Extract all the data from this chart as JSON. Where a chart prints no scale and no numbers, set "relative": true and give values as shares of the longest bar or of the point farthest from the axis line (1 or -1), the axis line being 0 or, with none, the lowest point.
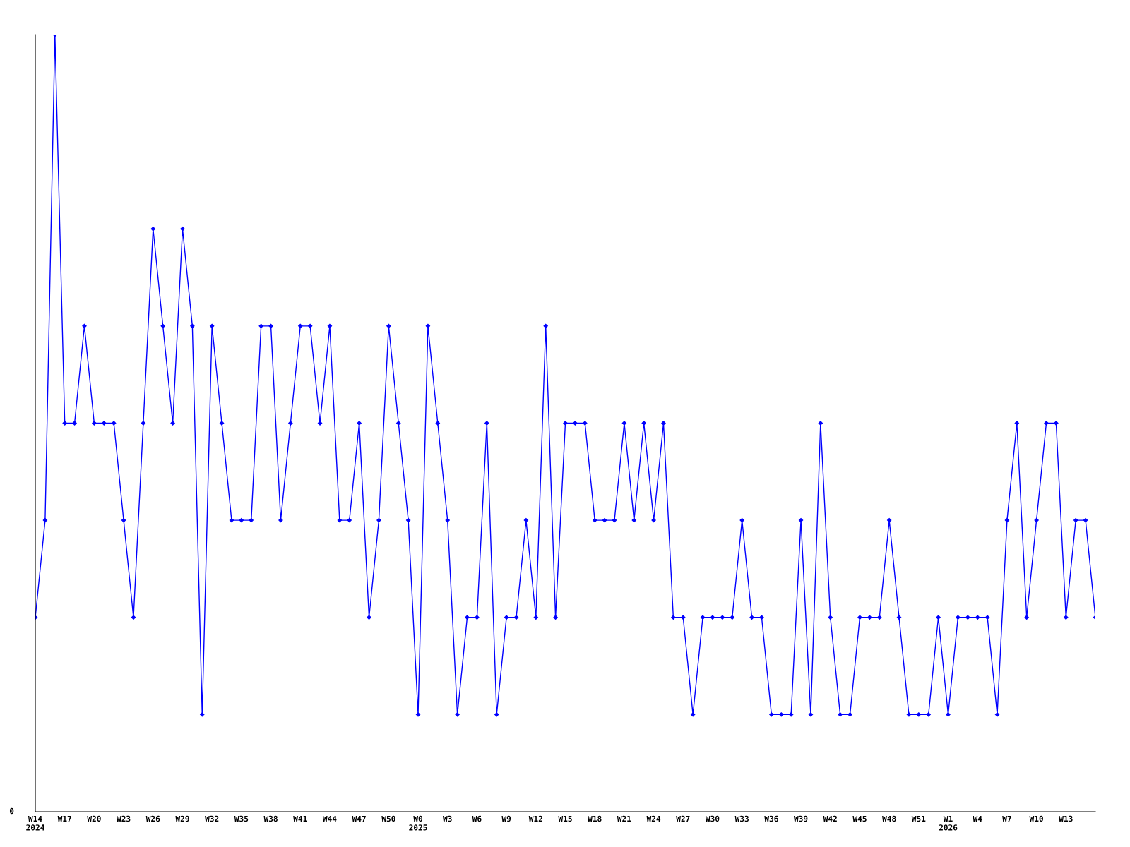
{
  "chart_data": {
    "type": "line",
    "relative": true,
    "categories": [
      "W14\n2024",
      null,
      null,
      "W17",
      null,
      null,
      "W20",
      null,
      null,
      "W23",
      null,
      null,
      "W26",
      null,
      null,
      "W29",
      null,
      null,
      "W32",
      null,
      null,
      "W35",
      null,
      null,
      "W38",
      null,
      null,
      "W41",
      null,
      null,
      "W44",
      null,
      null,
      "W47",
      null,
      null,
      "W50",
      null,
      null,
      "W0\n2025",
      null,
      null,
      "W3",
      null,
      null,
      "W6",
      null,
      null,
      "W9",
      null,
      null,
      "W12",
      null,
      null,
      "W15",
      null,
      null,
      "W18",
      null,
      null,
      "W21",
      null,
      null,
      "W24",
      null,
      null,
      "W27",
      null,
      null,
      "W30",
      null,
      null,
      "W33",
      null,
      null,
      "W36",
      null,
      null,
      "W39",
      null,
      null,
      "W42",
      null,
      null,
      "W45",
      null,
      null,
      "W48",
      null,
      null,
      "W51",
      null,
      null,
      "W1\n2026",
      null,
      null,
      "W4",
      null,
      null,
      "W7",
      null,
      null,
      "W10",
      null,
      null,
      "W13",
      null,
      null,
      null
    ],
    "series": [
      {
        "color": "#0000ff",
        "values": [
          0.25,
          0.375,
          1,
          0.5,
          0.5,
          0.625,
          0.5,
          0.5,
          0.5,
          0.375,
          0.25,
          0.5,
          0.75,
          0.625,
          0.5,
          0.75,
          0.625,
          0.125,
          0.625,
          0.5,
          0.375,
          0.375,
          0.375,
          0.625,
          0.625,
          0.375,
          0.5,
          0.625,
          0.625,
          0.5,
          0.625,
          0.375,
          0.375,
          0.5,
          0.25,
          0.375,
          0.625,
          0.5,
          0.375,
          0.125,
          0.625,
          0.5,
          0.375,
          0.125,
          0.25,
          0.25,
          0.5,
          0.125,
          0.25,
          0.25,
          0.375,
          0.25,
          0.625,
          0.25,
          0.5,
          0.5,
          0.5,
          0.375,
          0.375,
          0.375,
          0.5,
          0.375,
          0.5,
          0.375,
          0.5,
          0.25,
          0.25,
          0.125,
          0.25,
          0.25,
          0.25,
          0.25,
          0.375,
          0.25,
          0.25,
          0.125,
          0.125,
          0.125,
          0.375,
          0.125,
          0.5,
          0.25,
          0.125,
          0.125,
          0.25,
          0.25,
          0.25,
          0.375,
          0.25,
          0.125,
          0.125,
          0.125,
          0.25,
          0.125,
          0.25,
          0.25,
          0.25,
          0.25,
          0.125,
          0.375,
          0.5,
          0.25,
          0.375,
          0.5,
          0.5,
          0.25,
          0.375,
          0.375,
          0.25
        ]
      }
    ],
    "marker": "diamond",
    "line_style": "solid",
    "grid": false,
    "legend": false,
    "annotations": [
      "0"
    ]
  }
}
